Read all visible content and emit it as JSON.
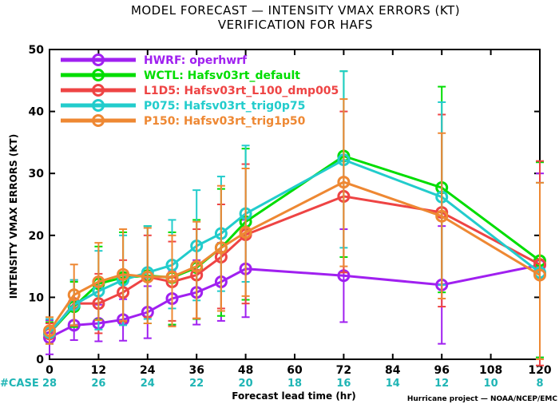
{
  "title_line1": "MODEL FORECAST — INTENSITY VMAX ERRORS (KT)",
  "title_line2": "VERIFICATION FOR HAFS",
  "footer": "Hurricane project — NOAA/NCEP/EMC",
  "case_label": "#CASE",
  "chart_data": {
    "type": "line",
    "xlabel": "Forecast lead time (hr)",
    "ylabel": "INTENSITY VMAX ERRORS  (KT)",
    "xlim": [
      0,
      120
    ],
    "ylim": [
      0,
      50
    ],
    "x_ticks": [
      0,
      12,
      24,
      36,
      48,
      60,
      72,
      84,
      96,
      108,
      120
    ],
    "y_ticks": [
      0,
      10,
      20,
      30,
      40,
      50
    ],
    "cases": [
      {
        "x": 0,
        "n": "28"
      },
      {
        "x": 12,
        "n": "26"
      },
      {
        "x": 24,
        "n": "24"
      },
      {
        "x": 36,
        "n": "22"
      },
      {
        "x": 48,
        "n": "20"
      },
      {
        "x": 60,
        "n": "18"
      },
      {
        "x": 72,
        "n": "16"
      },
      {
        "x": 84,
        "n": "14"
      },
      {
        "x": 96,
        "n": "12"
      },
      {
        "x": 108,
        "n": "10"
      },
      {
        "x": 120,
        "n": "8"
      }
    ],
    "legend_position": "top-left",
    "grid": false,
    "series": [
      {
        "name": "HWRF:  operhwrf",
        "color": "#a020f0",
        "x": [
          0,
          6,
          12,
          18,
          24,
          30,
          36,
          42,
          48,
          72,
          96,
          120
        ],
        "y": [
          3.5,
          5.5,
          5.8,
          6.4,
          7.6,
          9.8,
          10.8,
          12.5,
          14.6,
          13.5,
          12.0,
          15.2
        ],
        "err": [
          [
            0.8,
            6.3
          ],
          [
            3.1,
            8.0
          ],
          [
            2.9,
            8.8
          ],
          [
            3.0,
            9.7
          ],
          [
            3.4,
            11.8
          ],
          [
            5.4,
            14.2
          ],
          [
            5.6,
            16.0
          ],
          [
            6.2,
            18.8
          ],
          [
            6.8,
            22.5
          ],
          [
            6.0,
            21.0
          ],
          [
            2.5,
            21.5
          ],
          [
            0.3,
            30.0
          ]
        ]
      },
      {
        "name": "WCTL:  Hafsv03rt_default",
        "color": "#00dd00",
        "x": [
          0,
          6,
          12,
          18,
          24,
          30,
          36,
          42,
          48,
          72,
          96,
          120
        ],
        "y": [
          4.2,
          8.5,
          12.2,
          13.2,
          13.5,
          13.2,
          14.8,
          18.0,
          22.2,
          32.8,
          27.7,
          15.9
        ],
        "err": [
          [
            2.5,
            6.0
          ],
          [
            5.2,
            12.5
          ],
          [
            6.4,
            18.2
          ],
          [
            6.2,
            20.5
          ],
          [
            5.8,
            21.5
          ],
          [
            5.6,
            20.5
          ],
          [
            6.5,
            22.5
          ],
          [
            7.0,
            27.5
          ],
          [
            9.6,
            34.0
          ],
          [
            16.5,
            46.5
          ],
          [
            10.8,
            44.0
          ],
          [
            0.3,
            31.8
          ]
        ]
      },
      {
        "name": "L1D5:  Hafsv03rt_L100_dmp005",
        "color": "#ee4444",
        "x": [
          0,
          6,
          12,
          18,
          24,
          30,
          36,
          42,
          48,
          72,
          96,
          120
        ],
        "y": [
          4.1,
          9.0,
          9.0,
          10.8,
          13.3,
          12.5,
          13.6,
          16.5,
          20.1,
          26.3,
          23.7,
          15.3
        ],
        "err": [
          [
            2.5,
            5.8
          ],
          [
            5.4,
            12.8
          ],
          [
            4.2,
            13.8
          ],
          [
            6.0,
            16.0
          ],
          [
            6.8,
            20.0
          ],
          [
            6.2,
            19.0
          ],
          [
            6.6,
            21.0
          ],
          [
            8.2,
            25.0
          ],
          [
            9.0,
            31.5
          ],
          [
            14.0,
            40.0
          ],
          [
            8.5,
            39.5
          ],
          [
            -1.0,
            32.0
          ]
        ]
      },
      {
        "name": "P075:  Hafsv03rt_trig0p75",
        "color": "#22cccc",
        "x": [
          0,
          6,
          12,
          18,
          24,
          30,
          36,
          42,
          48,
          72,
          96,
          120
        ],
        "y": [
          4.3,
          8.8,
          11.0,
          12.8,
          14.0,
          15.2,
          18.3,
          20.3,
          23.5,
          32.2,
          26.2,
          14.0
        ],
        "err": [
          [
            2.5,
            6.5
          ],
          [
            5.5,
            12.8
          ],
          [
            4.8,
            17.5
          ],
          [
            5.5,
            20.0
          ],
          [
            6.5,
            21.5
          ],
          [
            8.2,
            22.5
          ],
          [
            9.5,
            27.3
          ],
          [
            11.0,
            29.5
          ],
          [
            12.5,
            34.5
          ],
          [
            18.0,
            46.5
          ],
          [
            12.0,
            41.5
          ],
          [
            0.0,
            28.5
          ]
        ]
      },
      {
        "name": "P150:  Hafsv03rt_trig1p50",
        "color": "#ee8833",
        "x": [
          0,
          6,
          12,
          18,
          24,
          30,
          36,
          42,
          48,
          72,
          96,
          120
        ],
        "y": [
          4.6,
          10.4,
          12.5,
          13.7,
          13.3,
          13.3,
          15.0,
          18.0,
          20.5,
          28.6,
          23.1,
          13.6
        ],
        "err": [
          [
            2.5,
            6.8
          ],
          [
            5.5,
            15.3
          ],
          [
            6.3,
            18.8
          ],
          [
            6.2,
            21.0
          ],
          [
            5.8,
            21.2
          ],
          [
            5.3,
            20.0
          ],
          [
            6.6,
            22.2
          ],
          [
            7.8,
            28.0
          ],
          [
            10.2,
            30.8
          ],
          [
            15.0,
            42.0
          ],
          [
            9.8,
            36.5
          ],
          [
            0.0,
            28.5
          ]
        ]
      }
    ]
  }
}
